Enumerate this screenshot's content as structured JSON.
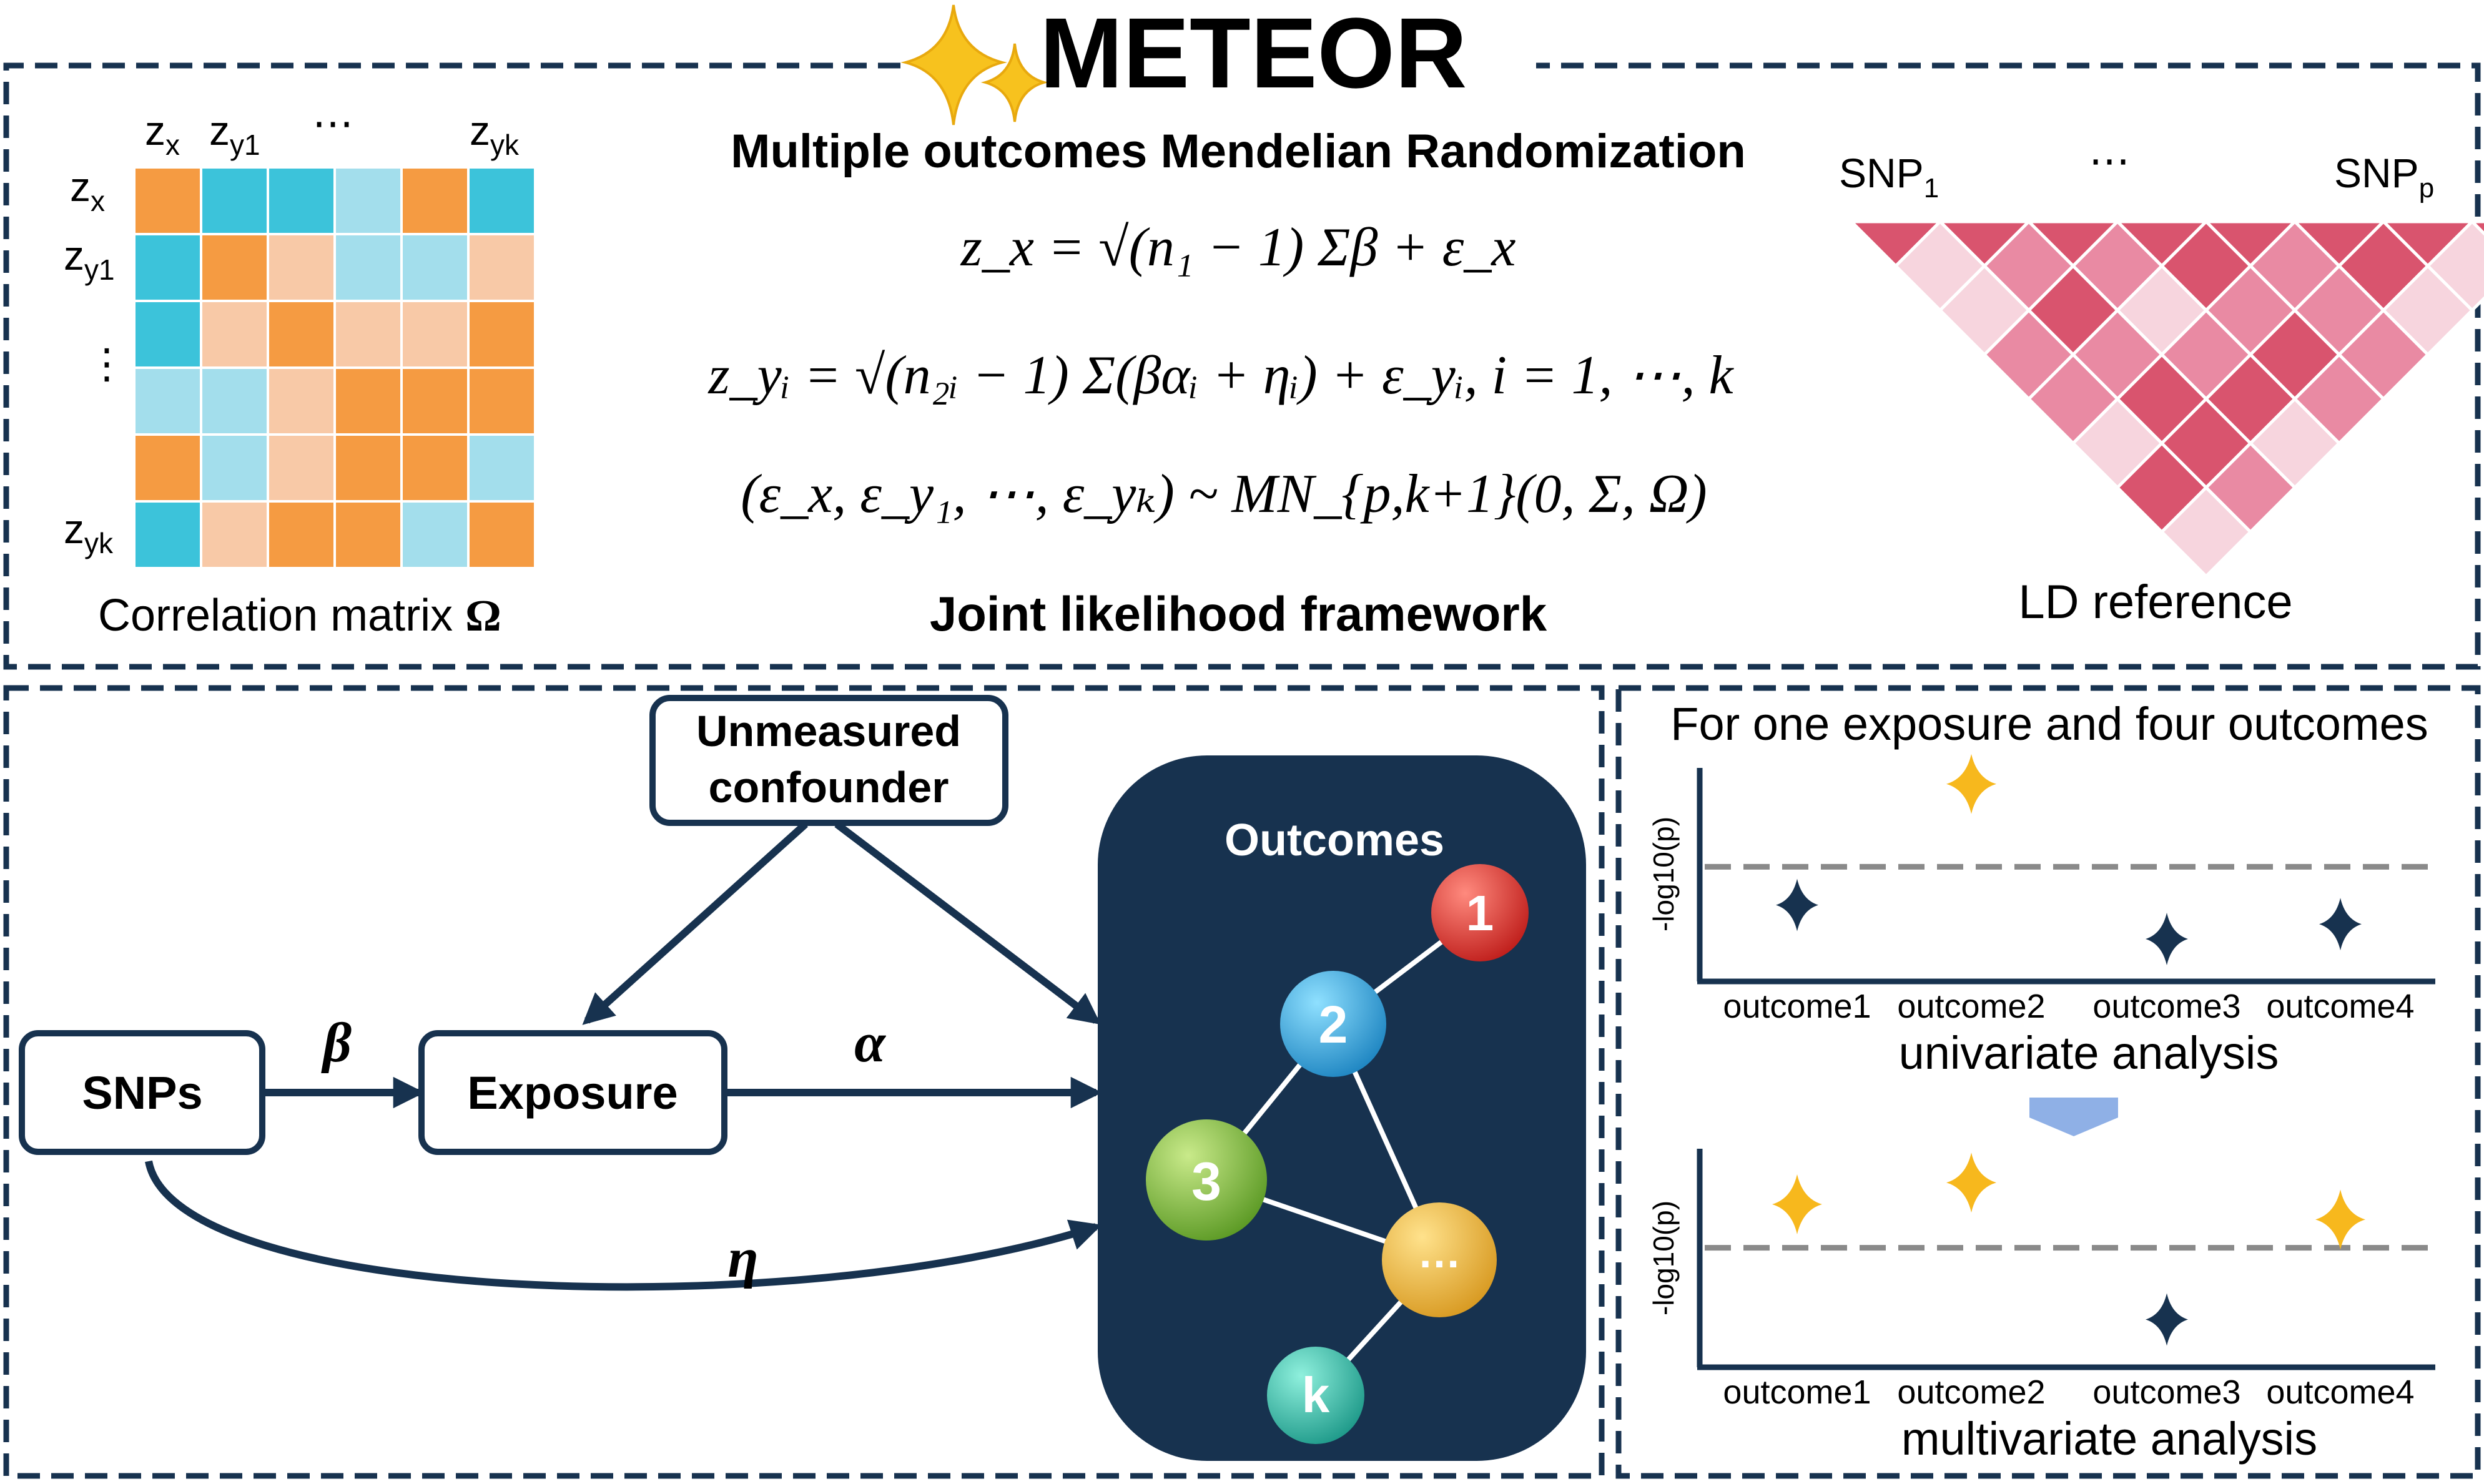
{
  "title": "METEOR",
  "colors": {
    "navy": "#17324f",
    "orange": "#f59b42",
    "peach": "#f8c9a7",
    "cyan": "#3cc3da",
    "lightcyan": "#a3deec",
    "ld_dark": "#d9546e",
    "ld_mid": "#e98aa3",
    "ld_light": "#f7d5de",
    "gold": "#f7b81d",
    "dash": "#8a8a8a",
    "funnel": "#8fb0e6"
  },
  "top": {
    "matrix": {
      "col_labels": [
        {
          "main": "z",
          "sub": "x"
        },
        {
          "main": "z",
          "sub": "y1"
        },
        {
          "main": "⋯",
          "sub": ""
        },
        {
          "main": "z",
          "sub": "yk"
        }
      ],
      "row_labels": [
        {
          "main": "z",
          "sub": "x"
        },
        {
          "main": "z",
          "sub": "y1"
        },
        {
          "main": "⋮",
          "sub": ""
        },
        {
          "main": "z",
          "sub": "yk"
        }
      ],
      "cells": [
        [
          "orange",
          "cyan",
          "cyan",
          "lightcyan",
          "orange",
          "cyan"
        ],
        [
          "cyan",
          "orange",
          "peach",
          "lightcyan",
          "lightcyan",
          "peach"
        ],
        [
          "cyan",
          "peach",
          "orange",
          "peach",
          "peach",
          "orange"
        ],
        [
          "lightcyan",
          "lightcyan",
          "peach",
          "orange",
          "orange",
          "orange"
        ],
        [
          "orange",
          "lightcyan",
          "peach",
          "orange",
          "orange",
          "lightcyan"
        ],
        [
          "cyan",
          "peach",
          "orange",
          "orange",
          "lightcyan",
          "orange"
        ]
      ],
      "caption_text": "Correlation matrix ",
      "caption_symbol": "Ω"
    },
    "method_title": "Multiple outcomes Mendelian Randomization",
    "equations": {
      "eq1": "z_x = √(n₁ − 1) Σβ + ε_x",
      "eq2": "z_yᵢ = √(n₂ᵢ − 1) Σ(βαᵢ + ηᵢ) + ε_yᵢ, i = 1, ⋯, k",
      "eq3": "(ε_x, ε_y₁, ⋯, ε_yₖ) ~ MN_{p,k+1}(0, Σ, Ω)"
    },
    "framework_label": "Joint likelihood framework",
    "ld": {
      "snp_first": "SNP",
      "snp_first_sub": "1",
      "ellipsis": "⋯",
      "snp_last": "SNP",
      "snp_last_sub": "p",
      "caption": "LD reference",
      "rows": [
        [
          "dark",
          "dark",
          "dark",
          "dark",
          "dark",
          "dark",
          "dark",
          "dark"
        ],
        [
          "light",
          "mid",
          "mid",
          "dark",
          "mid",
          "dark",
          "light"
        ],
        [
          "light",
          "dark",
          "light",
          "mid",
          "mid",
          "light"
        ],
        [
          "mid",
          "mid",
          "mid",
          "dark",
          "mid"
        ],
        [
          "mid",
          "dark",
          "dark",
          "mid"
        ],
        [
          "light",
          "dark",
          "light"
        ],
        [
          "dark",
          "mid"
        ],
        [
          "light"
        ]
      ]
    }
  },
  "dag": {
    "confounder_line1": "Unmeasured",
    "confounder_line2": "confounder",
    "snps": "SNPs",
    "exposure": "Exposure",
    "beta": "β",
    "alpha": "α",
    "eta": "η",
    "outcomes_title": "Outcomes",
    "nodes": [
      {
        "label": "1",
        "color": "#e0312c"
      },
      {
        "label": "2",
        "color": "#2e9ed4"
      },
      {
        "label": "3",
        "color": "#7fb83a"
      },
      {
        "label": "…",
        "color": "#f0b53a"
      },
      {
        "label": "k",
        "color": "#2fb4a6"
      }
    ]
  },
  "right": {
    "heading": "For one exposure and four outcomes",
    "ylabel": "-log10(p)",
    "categories": [
      "outcome1",
      "outcome2",
      "outcome3",
      "outcome4"
    ],
    "univariate": {
      "title": "univariate analysis",
      "points": [
        {
          "outcome": "outcome1",
          "level": 0.36,
          "significant": false
        },
        {
          "outcome": "outcome2",
          "level": 0.93,
          "significant": true
        },
        {
          "outcome": "outcome3",
          "level": 0.2,
          "significant": false
        },
        {
          "outcome": "outcome4",
          "level": 0.27,
          "significant": false
        }
      ],
      "threshold": 0.54
    },
    "multivariate": {
      "title": "multivariate analysis",
      "points": [
        {
          "outcome": "outcome1",
          "level": 0.75,
          "significant": true
        },
        {
          "outcome": "outcome2",
          "level": 0.85,
          "significant": true
        },
        {
          "outcome": "outcome3",
          "level": 0.22,
          "significant": false
        },
        {
          "outcome": "outcome4",
          "level": 0.68,
          "significant": true
        }
      ],
      "threshold": 0.55
    }
  }
}
